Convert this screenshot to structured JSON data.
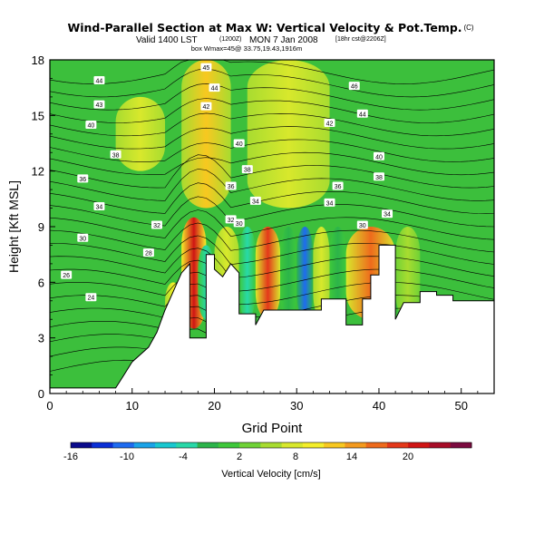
{
  "title": {
    "main": "Wind-Parallel Section at Max W: Vertical Velocity & Pot.Temp.",
    "copyright": "(C)",
    "line2_a": "Valid 1400 LST",
    "line2_b": "(1200Z)",
    "line2_c": "MON 7 Jan 2008",
    "line2_d": "[18hr cst@2206Z]",
    "line3": "box Wmax=45@ 33.75,19.43,1916m"
  },
  "chart_data": {
    "type": "heatmap",
    "xlabel": "Grid Point",
    "ylabel": "Height [Kft MSL]",
    "xlim": [
      0,
      54
    ],
    "ylim": [
      0,
      18
    ],
    "x_ticks": [
      0,
      10,
      20,
      30,
      40,
      50
    ],
    "y_ticks": [
      0,
      3,
      6,
      9,
      12,
      15,
      18
    ],
    "colorbar": {
      "label": "Vertical Velocity [cm/s]",
      "tick_labels": [
        "-16",
        "-10",
        "-4",
        "2",
        "8",
        "14",
        "20"
      ],
      "colors": [
        "#0a0a8c",
        "#0a2fd6",
        "#1e6bf0",
        "#1aa3e8",
        "#18c8d0",
        "#28d8a8",
        "#2cb44a",
        "#3ec83a",
        "#6fd236",
        "#a8dc30",
        "#d8e82c",
        "#f4ee2a",
        "#f8c820",
        "#f49a1e",
        "#ee6a1c",
        "#e4381a",
        "#d01414",
        "#a80c28",
        "#7c0a40"
      ]
    },
    "vertical_velocity_cells": [
      {
        "x": [
          14,
          16
        ],
        "y": [
          3,
          6
        ],
        "w": 8
      },
      {
        "x": [
          16,
          19
        ],
        "y": [
          3.5,
          9.5
        ],
        "w": 20
      },
      {
        "x": [
          18,
          20
        ],
        "y": [
          4,
          8
        ],
        "w": -8
      },
      {
        "x": [
          20,
          23
        ],
        "y": [
          3.5,
          9
        ],
        "w": 6
      },
      {
        "x": [
          23,
          25
        ],
        "y": [
          4,
          9
        ],
        "w": -6
      },
      {
        "x": [
          25,
          28
        ],
        "y": [
          4,
          9
        ],
        "w": 18
      },
      {
        "x": [
          28,
          30
        ],
        "y": [
          4,
          9
        ],
        "w": -4
      },
      {
        "x": [
          30,
          32
        ],
        "y": [
          4,
          9
        ],
        "w": -15
      },
      {
        "x": [
          32,
          34
        ],
        "y": [
          4,
          9
        ],
        "w": 6
      },
      {
        "x": [
          34,
          36
        ],
        "y": [
          4,
          9
        ],
        "w": -4
      },
      {
        "x": [
          36,
          42
        ],
        "y": [
          4,
          9
        ],
        "w": 16
      },
      {
        "x": [
          42,
          45
        ],
        "y": [
          4,
          9
        ],
        "w": 2
      },
      {
        "x": [
          16,
          22
        ],
        "y": [
          10,
          18
        ],
        "w": 10
      },
      {
        "x": [
          24,
          34
        ],
        "y": [
          10,
          18
        ],
        "w": 6
      },
      {
        "x": [
          8,
          14
        ],
        "y": [
          12,
          16
        ],
        "w": 6
      }
    ],
    "terrain_top": [
      [
        0,
        0.3
      ],
      [
        8,
        0.3
      ],
      [
        9,
        1
      ],
      [
        10,
        1.7
      ],
      [
        12,
        2.5
      ],
      [
        13,
        3.3
      ],
      [
        14,
        4.5
      ],
      [
        15,
        5.5
      ],
      [
        16,
        6.5
      ],
      [
        17,
        7
      ],
      [
        17,
        3
      ],
      [
        19,
        3
      ],
      [
        19,
        7.5
      ],
      [
        20,
        7.5
      ],
      [
        20,
        6.7
      ],
      [
        21,
        6.3
      ],
      [
        22,
        7
      ],
      [
        23,
        6.5
      ],
      [
        23,
        4.3
      ],
      [
        25,
        4.3
      ],
      [
        25,
        3.7
      ],
      [
        26,
        4.5
      ],
      [
        33,
        4.5
      ],
      [
        33,
        5.1
      ],
      [
        36,
        5.1
      ],
      [
        36,
        3.7
      ],
      [
        38,
        3.7
      ],
      [
        38,
        5.1
      ],
      [
        39,
        5.1
      ],
      [
        39,
        6.4
      ],
      [
        40,
        6.4
      ],
      [
        40,
        8
      ],
      [
        42,
        8
      ],
      [
        42,
        4
      ],
      [
        43,
        4.9
      ],
      [
        45,
        4.9
      ],
      [
        45,
        5.5
      ],
      [
        47,
        5.5
      ],
      [
        47,
        5.3
      ],
      [
        49,
        5.3
      ],
      [
        49,
        5
      ],
      [
        54,
        5
      ]
    ],
    "theta_contour_labels": [
      {
        "text": "44",
        "x": 6,
        "y": 16.9
      },
      {
        "text": "45",
        "x": 19,
        "y": 17.6
      },
      {
        "text": "44",
        "x": 20,
        "y": 16.5
      },
      {
        "text": "46",
        "x": 37,
        "y": 16.6
      },
      {
        "text": "43",
        "x": 6,
        "y": 15.6
      },
      {
        "text": "42",
        "x": 19,
        "y": 15.5
      },
      {
        "text": "44",
        "x": 38,
        "y": 15.1
      },
      {
        "text": "40",
        "x": 5,
        "y": 14.5
      },
      {
        "text": "42",
        "x": 34,
        "y": 14.6
      },
      {
        "text": "40",
        "x": 23,
        "y": 13.5
      },
      {
        "text": "38",
        "x": 8,
        "y": 12.9
      },
      {
        "text": "40",
        "x": 40,
        "y": 12.8
      },
      {
        "text": "38",
        "x": 24,
        "y": 12.1
      },
      {
        "text": "36",
        "x": 4,
        "y": 11.6
      },
      {
        "text": "38",
        "x": 40,
        "y": 11.7
      },
      {
        "text": "36",
        "x": 22,
        "y": 11.2
      },
      {
        "text": "36",
        "x": 35,
        "y": 11.2
      },
      {
        "text": "34",
        "x": 25,
        "y": 10.4
      },
      {
        "text": "34",
        "x": 34,
        "y": 10.3
      },
      {
        "text": "34",
        "x": 6,
        "y": 10.1
      },
      {
        "text": "34",
        "x": 41,
        "y": 9.7
      },
      {
        "text": "32",
        "x": 22,
        "y": 9.4
      },
      {
        "text": "32",
        "x": 13,
        "y": 9.1
      },
      {
        "text": "30",
        "x": 23,
        "y": 9.2
      },
      {
        "text": "30",
        "x": 38,
        "y": 9.1
      },
      {
        "text": "30",
        "x": 4,
        "y": 8.4
      },
      {
        "text": "28",
        "x": 12,
        "y": 7.6
      },
      {
        "text": "26",
        "x": 2,
        "y": 6.4
      },
      {
        "text": "24",
        "x": 5,
        "y": 5.2
      }
    ]
  }
}
